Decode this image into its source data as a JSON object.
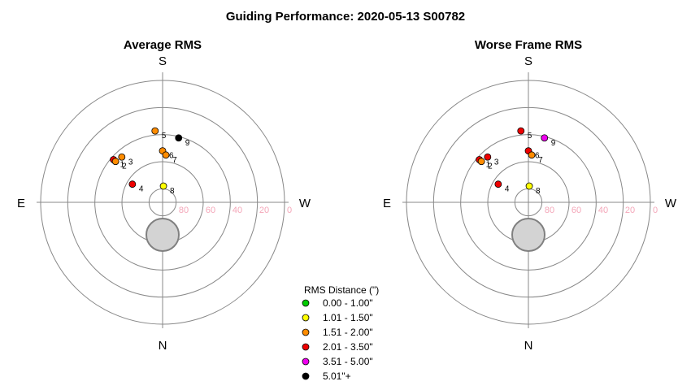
{
  "figure_title": "Guiding Performance: 2020-05-13 S00782",
  "chart_data": [
    {
      "type": "scatter",
      "projection": "polar-altaz",
      "title": "Average RMS",
      "compass": {
        "top": "S",
        "bottom": "N",
        "left": "E",
        "right": "W"
      },
      "altitude_ticks": [
        "80",
        "60",
        "40",
        "20",
        "0"
      ],
      "altitude_rings": [
        80,
        60,
        40,
        20,
        0
      ],
      "points": [
        {
          "label": "1",
          "az": 131,
          "alt": 42,
          "category": "2.01 - 3.50\""
        },
        {
          "label": "2",
          "az": 131,
          "alt": 44,
          "category": "1.51 - 2.00\""
        },
        {
          "label": "3",
          "az": 138,
          "alt": 45,
          "category": "1.51 - 2.00\""
        },
        {
          "label": "4",
          "az": 121,
          "alt": 64,
          "category": "2.01 - 3.50\""
        },
        {
          "label": "5",
          "az": 174,
          "alt": 37,
          "category": "1.51 - 2.00\""
        },
        {
          "label": "6",
          "az": 180,
          "alt": 52,
          "category": "1.51 - 2.00\""
        },
        {
          "label": "7",
          "az": 184,
          "alt": 55,
          "category": "1.51 - 2.00\""
        },
        {
          "label": "8",
          "az": 183,
          "alt": 78,
          "category": "1.01 - 1.50\""
        },
        {
          "label": "9",
          "az": 194,
          "alt": 41,
          "category": "5.01\"+"
        }
      ]
    },
    {
      "type": "scatter",
      "projection": "polar-altaz",
      "title": "Worse Frame RMS",
      "compass": {
        "top": "S",
        "bottom": "N",
        "left": "E",
        "right": "W"
      },
      "altitude_ticks": [
        "80",
        "60",
        "40",
        "20",
        "0"
      ],
      "altitude_rings": [
        80,
        60,
        40,
        20,
        0
      ],
      "points": [
        {
          "label": "1",
          "az": 131,
          "alt": 42,
          "category": "2.01 - 3.50\""
        },
        {
          "label": "2",
          "az": 131,
          "alt": 44,
          "category": "1.51 - 2.00\""
        },
        {
          "label": "3",
          "az": 138,
          "alt": 45,
          "category": "2.01 - 3.50\""
        },
        {
          "label": "4",
          "az": 121,
          "alt": 64,
          "category": "2.01 - 3.50\""
        },
        {
          "label": "5",
          "az": 174,
          "alt": 37,
          "category": "2.01 - 3.50\""
        },
        {
          "label": "6",
          "az": 180,
          "alt": 52,
          "category": "2.01 - 3.50\""
        },
        {
          "label": "7",
          "az": 184,
          "alt": 55,
          "category": "1.51 - 2.00\""
        },
        {
          "label": "8",
          "az": 183,
          "alt": 78,
          "category": "1.01 - 1.50\""
        },
        {
          "label": "9",
          "az": 194,
          "alt": 41,
          "category": "3.51 - 5.00\""
        }
      ]
    }
  ],
  "moon_disc": {
    "az": 0,
    "alt": 66,
    "radius_deg": 12,
    "color": "#d3d3d3",
    "stroke": "#808080"
  },
  "legend": {
    "title": "RMS Distance (\")",
    "items": [
      {
        "label": "0.00 - 1.00\"",
        "color": "#00cc00"
      },
      {
        "label": "1.01 - 1.50\"",
        "color": "#ffff00"
      },
      {
        "label": "1.51 - 2.00\"",
        "color": "#ff8c00"
      },
      {
        "label": "2.01 - 3.50\"",
        "color": "#ee0000"
      },
      {
        "label": "3.51 - 5.00\"",
        "color": "#ee00ee"
      },
      {
        "label": "5.01\"+",
        "color": "#000000"
      }
    ]
  },
  "colors": {
    "grid": "#888888",
    "tick_text": "#f4a7b9"
  }
}
